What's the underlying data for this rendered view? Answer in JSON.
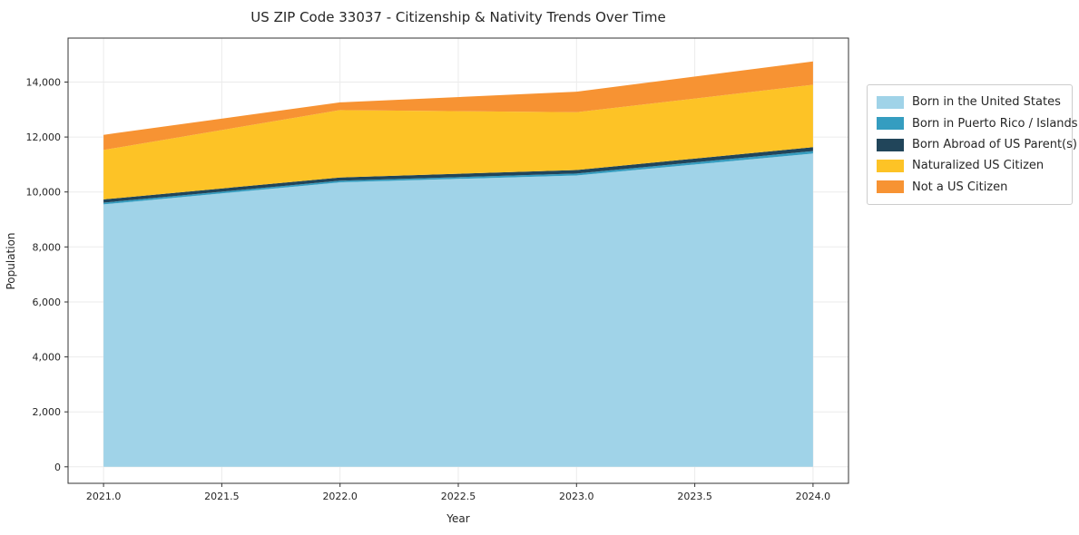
{
  "chart_data": {
    "type": "area",
    "stacked": true,
    "title": "US ZIP Code 33037 - Citizenship & Nativity Trends Over Time",
    "xlabel": "Year",
    "ylabel": "Population",
    "x": [
      2021,
      2022,
      2023,
      2024
    ],
    "series": [
      {
        "name": "Born in the United States",
        "color": "#a0d3e8",
        "values": [
          9550,
          10350,
          10600,
          11400
        ]
      },
      {
        "name": "Born in Puerto Rico / Islands",
        "color": "#359dc0",
        "values": [
          60,
          60,
          70,
          90
        ]
      },
      {
        "name": "Born Abroad of US Parent(s)",
        "color": "#21455a",
        "values": [
          120,
          120,
          130,
          140
        ]
      },
      {
        "name": "Naturalized US Citizen",
        "color": "#fdc326",
        "values": [
          1800,
          2450,
          2100,
          2270
        ]
      },
      {
        "name": "Not a US Citizen",
        "color": "#f79333",
        "values": [
          550,
          280,
          750,
          850
        ]
      }
    ],
    "xlim": [
      2020.85,
      2024.15
    ],
    "ylim": [
      -600,
      15600
    ],
    "xticks": {
      "values": [
        2021,
        2021.5,
        2022,
        2022.5,
        2023,
        2023.5,
        2024
      ],
      "labels": [
        "2021.0",
        "2021.5",
        "2022.0",
        "2022.5",
        "2023.0",
        "2023.5",
        "2024.0"
      ]
    },
    "yticks": {
      "values": [
        0,
        2000,
        4000,
        6000,
        8000,
        10000,
        12000,
        14000
      ],
      "labels": [
        "0",
        "2,000",
        "4,000",
        "6,000",
        "8,000",
        "10,000",
        "12,000",
        "14,000"
      ]
    },
    "grid": true,
    "legend_position": "right"
  }
}
